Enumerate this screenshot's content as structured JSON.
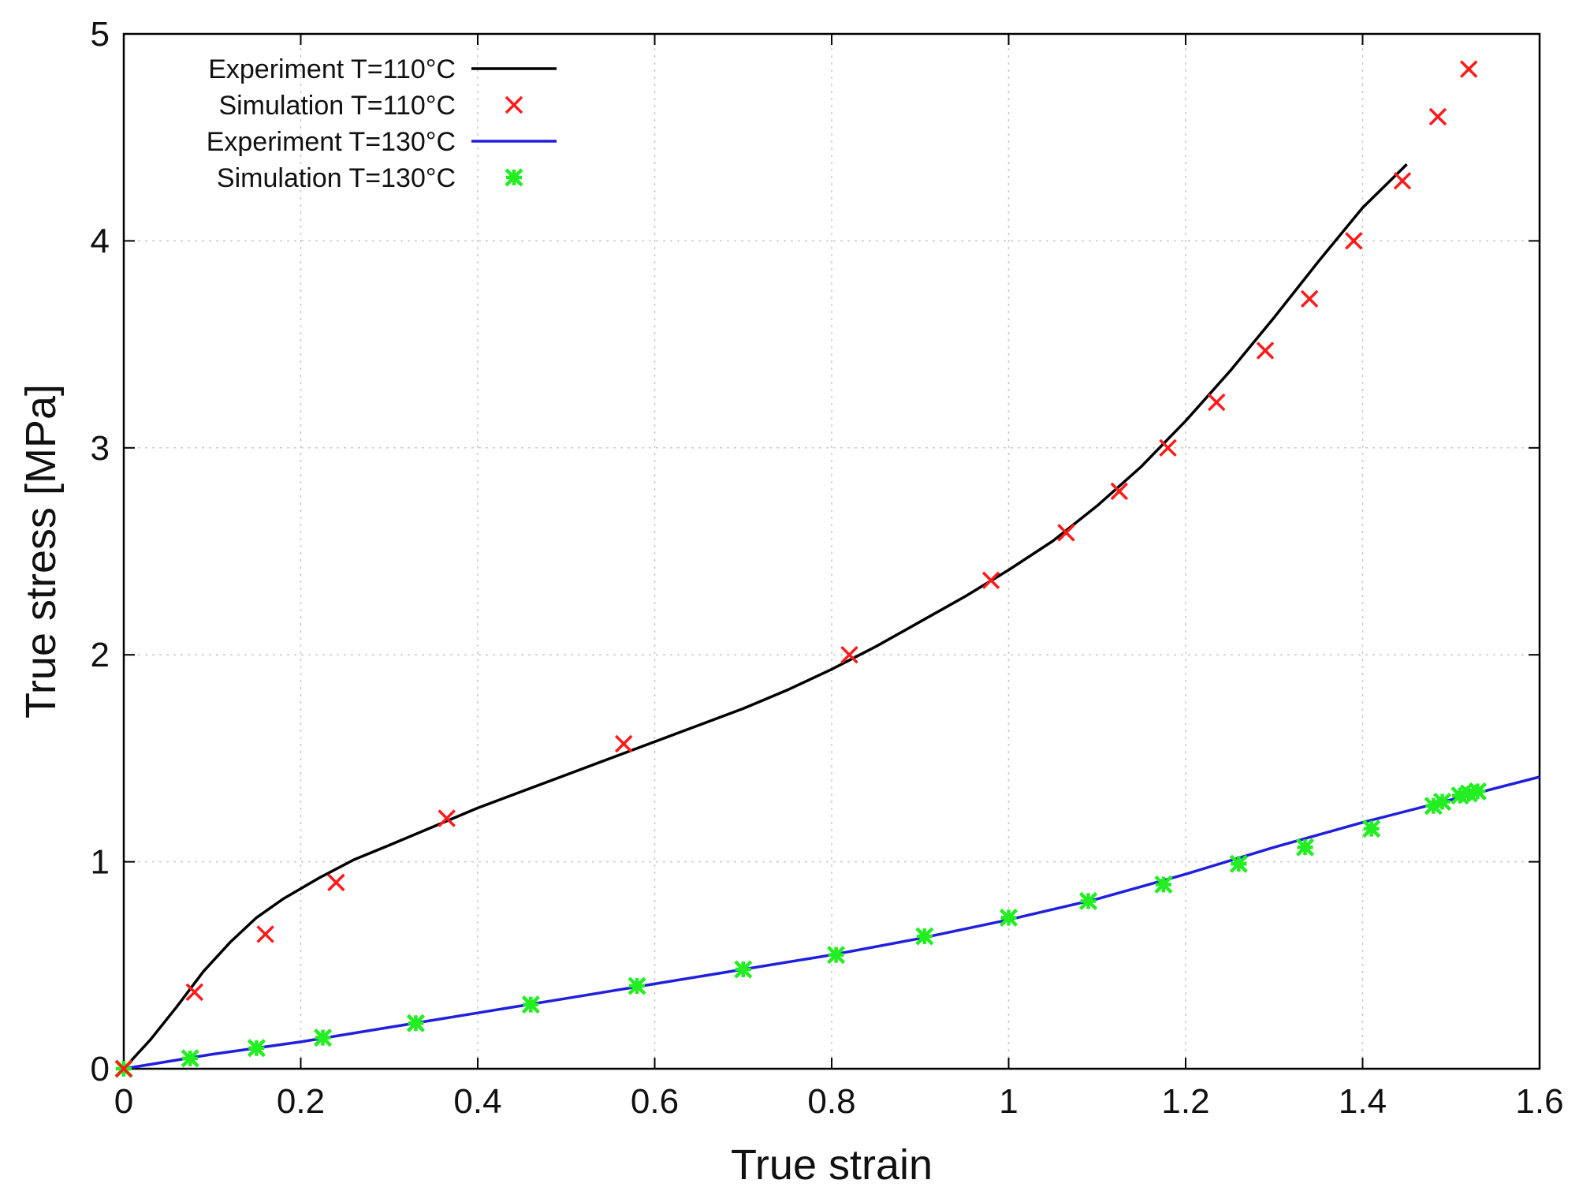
{
  "chart_data": {
    "type": "line",
    "title": "",
    "xlabel": "True strain",
    "ylabel": "True stress [MPa]",
    "xlim": [
      0,
      1.6
    ],
    "ylim": [
      0,
      5
    ],
    "xticks": [
      "0",
      "0.2",
      "0.4",
      "0.6",
      "0.8",
      "1",
      "1.2",
      "1.4",
      "1.6"
    ],
    "yticks": [
      "0",
      "1",
      "2",
      "3",
      "4",
      "5"
    ],
    "grid": true,
    "legend_position": "top-left",
    "colors": {
      "exp110": "#000000",
      "sim110": "#ff1a1a",
      "exp130": "#1f1fdd",
      "sim130": "#22ee22"
    },
    "series": [
      {
        "name": "Experiment T=110°C",
        "style": "line",
        "color_key": "exp110",
        "x": [
          0,
          0.03,
          0.06,
          0.09,
          0.12,
          0.15,
          0.18,
          0.22,
          0.26,
          0.3,
          0.35,
          0.4,
          0.45,
          0.5,
          0.55,
          0.6,
          0.65,
          0.7,
          0.75,
          0.8,
          0.85,
          0.9,
          0.95,
          1.0,
          1.05,
          1.1,
          1.15,
          1.2,
          1.25,
          1.3,
          1.35,
          1.4,
          1.45
        ],
        "y": [
          0,
          0.14,
          0.3,
          0.47,
          0.61,
          0.73,
          0.82,
          0.92,
          1.01,
          1.08,
          1.17,
          1.26,
          1.34,
          1.42,
          1.5,
          1.58,
          1.66,
          1.74,
          1.83,
          1.93,
          2.04,
          2.16,
          2.28,
          2.41,
          2.55,
          2.72,
          2.91,
          3.13,
          3.37,
          3.63,
          3.9,
          4.16,
          4.37
        ]
      },
      {
        "name": "Simulation T=110°C",
        "style": "cross",
        "color_key": "sim110",
        "x": [
          0,
          0.08,
          0.16,
          0.24,
          0.365,
          0.565,
          0.82,
          0.98,
          1.065,
          1.125,
          1.18,
          1.235,
          1.29,
          1.34,
          1.39,
          1.445,
          1.485,
          1.52
        ],
        "y": [
          0,
          0.37,
          0.65,
          0.9,
          1.21,
          1.57,
          2.0,
          2.36,
          2.59,
          2.79,
          3.0,
          3.22,
          3.47,
          3.72,
          4.0,
          4.29,
          4.6,
          4.83
        ]
      },
      {
        "name": "Experiment T=130°C",
        "style": "line",
        "color_key": "exp130",
        "x": [
          0,
          0.1,
          0.2,
          0.3,
          0.4,
          0.5,
          0.6,
          0.7,
          0.8,
          0.9,
          1.0,
          1.1,
          1.2,
          1.3,
          1.4,
          1.5,
          1.6
        ],
        "y": [
          0,
          0.07,
          0.13,
          0.2,
          0.27,
          0.34,
          0.41,
          0.48,
          0.55,
          0.63,
          0.72,
          0.82,
          0.94,
          1.07,
          1.19,
          1.3,
          1.41
        ]
      },
      {
        "name": "Simulation T=130°C",
        "style": "star",
        "color_key": "sim130",
        "x": [
          0,
          0.075,
          0.15,
          0.225,
          0.33,
          0.46,
          0.58,
          0.7,
          0.805,
          0.905,
          1.0,
          1.09,
          1.175,
          1.26,
          1.335,
          1.41,
          1.48,
          1.49,
          1.51,
          1.52,
          1.53
        ],
        "y": [
          0,
          0.05,
          0.1,
          0.15,
          0.22,
          0.31,
          0.4,
          0.48,
          0.55,
          0.64,
          0.73,
          0.81,
          0.89,
          0.99,
          1.07,
          1.16,
          1.27,
          1.29,
          1.32,
          1.33,
          1.34
        ]
      }
    ]
  }
}
